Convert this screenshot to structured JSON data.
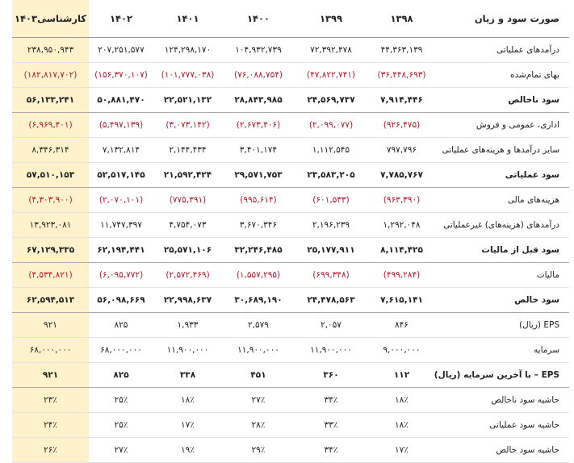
{
  "table": {
    "columns": [
      "صورت سود و زیان",
      "۱۳۹۸",
      "۱۳۹۹",
      "۱۴۰۰",
      "۱۴۰۱",
      "۱۴۰۲",
      "کارشناسی۱۴۰۳"
    ],
    "rows": [
      {
        "cells": [
          "درآمدهای عملیاتی",
          "۴۴,۳۶۳,۱۳۹",
          "۷۲,۳۹۲,۴۷۸",
          "۱۰۴,۹۳۲,۷۳۹",
          "۱۲۴,۲۹۸,۱۷۰",
          "۲۰۷,۲۵۱,۵۷۷",
          "۲۳۸,۹۵۰,۹۴۳"
        ],
        "bold": false
      },
      {
        "cells": [
          "بهای تمام‌شده",
          "(۳۶,۴۴۸,۶۹۳)",
          "(۴۷,۸۲۲,۷۴۱)",
          "(۷۶,۰۸۸,۷۵۴)",
          "(۱۰۱,۷۷۷,۰۳۸)",
          "(۱۵۶,۳۷۰,۱۰۷)",
          "(۱۸۲,۸۱۷,۷۰۲)"
        ],
        "bold": false
      },
      {
        "cells": [
          "سود ناخالص",
          "۷,۹۱۴,۴۴۶",
          "۲۴,۵۶۹,۷۳۷",
          "۲۸,۸۴۳,۹۸۵",
          "۲۲,۵۲۱,۱۳۲",
          "۵۰,۸۸۱,۴۷۰",
          "۵۶,۱۳۳,۲۴۱"
        ],
        "bold": true
      },
      {
        "cells": [
          "اداری، عمومی و فروش",
          "(۹۲۶,۴۷۵)",
          "(۲,۰۹۹,۰۷۷)",
          "(۲,۶۷۳,۴۰۶)",
          "(۳,۰۷۳,۱۴۲)",
          "(۵,۴۹۷,۱۳۹)",
          "(۶,۹۶۹,۴۰۱)"
        ],
        "bold": false
      },
      {
        "cells": [
          "سایر درآمدها و هزینه‌های عملیاتی",
          "۷۹۷,۷۹۶",
          "۱,۱۱۲,۵۴۵",
          "۳,۴۰۱,۱۷۴",
          "۲,۱۴۴,۴۳۴",
          "۷,۱۳۲,۸۱۴",
          "۸,۳۴۶,۳۱۴"
        ],
        "bold": false
      },
      {
        "cells": [
          "سود عملیاتی",
          "۷,۷۸۵,۷۶۷",
          "۲۳,۵۸۳,۲۰۵",
          "۲۹,۵۷۱,۷۵۳",
          "۲۱,۵۹۲,۴۲۴",
          "۵۲,۵۱۷,۱۴۵",
          "۵۷,۵۱۰,۱۵۳"
        ],
        "bold": true
      },
      {
        "cells": [
          "هزینه‌های مالی",
          "(۹۶۳,۳۹۰)",
          "(۶۰۱,۵۳۳)",
          "(۹۹۵,۶۱۴)",
          "(۷۷۵,۳۹۱)",
          "(۲,۰۷۰,۱۰۱)",
          "(۴,۳۰۳,۹۰۰)"
        ],
        "bold": false
      },
      {
        "cells": [
          "درآمدهای (هزینه‌های) غیرعملیاتی",
          "۱,۲۹۲,۰۴۸",
          "۲,۱۹۶,۲۳۹",
          "۳,۶۷۰,۳۴۶",
          "۴,۷۵۴,۰۷۳",
          "۱۱,۷۴۷,۳۹۷",
          "۱۳,۹۲۳,۰۸۱"
        ],
        "bold": false
      },
      {
        "cells": [
          "سود قبل از مالیات",
          "۸,۱۱۴,۴۲۵",
          "۲۵,۱۷۷,۹۱۱",
          "۳۲,۲۴۶,۴۸۵",
          "۲۵,۵۷۱,۱۰۶",
          "۶۲,۱۹۴,۴۴۱",
          "۶۷,۱۲۹,۳۳۵"
        ],
        "bold": true
      },
      {
        "cells": [
          "مالیات",
          "(۴۹۹,۲۸۴)",
          "(۶۹۹,۳۴۸)",
          "(۱,۵۵۷,۲۹۵)",
          "(۲,۵۷۲,۴۶۹)",
          "(۶,۰۹۵,۷۷۲)",
          "(۴,۵۳۴,۸۲۱)"
        ],
        "bold": false
      },
      {
        "cells": [
          "سود خالص",
          "۷,۶۱۵,۱۴۱",
          "۲۴,۴۷۸,۵۶۳",
          "۳۰,۶۸۹,۱۹۰",
          "۲۲,۹۹۸,۶۳۷",
          "۵۶,۰۹۸,۶۶۹",
          "۶۲,۵۹۴,۵۱۳"
        ],
        "bold": true
      },
      {
        "cells": [
          "EPS (ریال)",
          "۸۴۶",
          "۲,۰۵۷",
          "۲,۵۷۹",
          "۱,۹۳۳",
          "۸۲۵",
          "۹۲۱"
        ],
        "bold": false
      },
      {
        "cells": [
          "سرمایه",
          "۹,۰۰۰,۰۰۰",
          "۱۱,۹۰۰,۰۰۰",
          "۱۱,۹۰۰,۰۰۰",
          "۱۱,۹۰۰,۰۰۰",
          "۶۸,۰۰۰,۰۰۰",
          "۶۸,۰۰۰,۰۰۰"
        ],
        "bold": false
      },
      {
        "cells": [
          "EPS – با آخرین سرمایه (ریال)",
          "۱۱۲",
          "۳۶۰",
          "۴۵۱",
          "۳۳۸",
          "۸۲۵",
          "۹۲۱"
        ],
        "bold": true
      },
      {
        "cells": [
          "حاشیه سود ناخالص",
          "۱۸٪",
          "۳۴٪",
          "۲۷٪",
          "۱۸٪",
          "۲۵٪",
          "۲۳٪"
        ],
        "bold": false
      },
      {
        "cells": [
          "حاشیه سود عملیاتی",
          "۱۸٪",
          "۳۳٪",
          "۲۸٪",
          "۱۷٪",
          "۲۵٪",
          "۲۴٪"
        ],
        "bold": false
      },
      {
        "cells": [
          "حاشیه سود خالص",
          "۱۷٪",
          "۳۴٪",
          "۲۹٪",
          "۱۹٪",
          "۲۷٪",
          "۲۶٪"
        ],
        "bold": false
      }
    ]
  }
}
